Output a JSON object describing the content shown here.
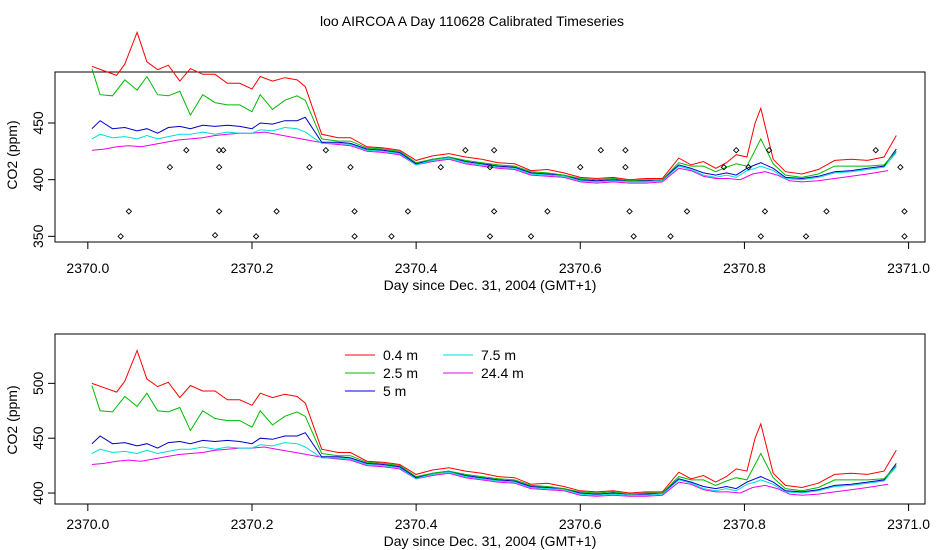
{
  "title": "loo AIRCOA A  Day 110628  Calibrated Timeseries",
  "colors": {
    "s04": "#ff0000",
    "s25": "#00bb00",
    "s5": "#0000cc",
    "s75": "#00dddd",
    "s244": "#ee00ee",
    "axis": "#000000"
  },
  "chart_data": [
    {
      "type": "line",
      "xlabel": "Day since Dec. 31, 2004 (GMT+1)",
      "ylabel": "CO2 (ppm)",
      "xlim": [
        2369.96,
        2371.02
      ],
      "ylim": [
        345,
        495
      ],
      "xticks": [
        "2370.0",
        "2370.2",
        "2370.4",
        "2370.6",
        "2370.8",
        "2371.0"
      ],
      "xtick_values": [
        2370.0,
        2370.2,
        2370.4,
        2370.6,
        2370.8,
        2371.0
      ],
      "yticks": [
        "350",
        "400",
        "450"
      ],
      "ytick_values": [
        350,
        400,
        450
      ],
      "series": [
        {
          "key": "s04",
          "color": "#ff0000",
          "x": [
            2370.005,
            2370.02,
            2370.035,
            2370.045,
            2370.06,
            2370.072,
            2370.085,
            2370.098,
            2370.112,
            2370.125,
            2370.14,
            2370.155,
            2370.17,
            2370.185,
            2370.2,
            2370.21,
            2370.225,
            2370.24,
            2370.255,
            2370.265,
            2370.285,
            2370.305,
            2370.32,
            2370.34,
            2370.36,
            2370.38,
            2370.4,
            2370.42,
            2370.44,
            2370.46,
            2370.48,
            2370.5,
            2370.52,
            2370.54,
            2370.56,
            2370.58,
            2370.6,
            2370.62,
            2370.64,
            2370.66,
            2370.68,
            2370.7,
            2370.72,
            2370.735,
            2370.75,
            2370.765,
            2370.778,
            2370.79,
            2370.803,
            2370.813,
            2370.82,
            2370.835,
            2370.85,
            2370.87,
            2370.89,
            2370.91,
            2370.93,
            2370.95,
            2370.97,
            2370.985
          ],
          "y": [
            500,
            496,
            492,
            502,
            530,
            504,
            497,
            501,
            487,
            498,
            493,
            493,
            485,
            485,
            480,
            491,
            487,
            490,
            488,
            482,
            440,
            437,
            437,
            429,
            428,
            426,
            417,
            421,
            423,
            420,
            418,
            415,
            414,
            408,
            409,
            406,
            402,
            401,
            402,
            400,
            401,
            401,
            419,
            413,
            416,
            410,
            415,
            422,
            420,
            450,
            463,
            418,
            407,
            405,
            409,
            417,
            418,
            417,
            420,
            439
          ]
        },
        {
          "key": "s25",
          "color": "#00bb00",
          "x": [
            2370.005,
            2370.015,
            2370.03,
            2370.045,
            2370.06,
            2370.072,
            2370.085,
            2370.098,
            2370.112,
            2370.125,
            2370.14,
            2370.155,
            2370.17,
            2370.185,
            2370.2,
            2370.21,
            2370.225,
            2370.24,
            2370.255,
            2370.265,
            2370.285,
            2370.305,
            2370.32,
            2370.34,
            2370.36,
            2370.38,
            2370.4,
            2370.42,
            2370.44,
            2370.46,
            2370.48,
            2370.5,
            2370.52,
            2370.54,
            2370.56,
            2370.58,
            2370.6,
            2370.62,
            2370.64,
            2370.66,
            2370.68,
            2370.7,
            2370.72,
            2370.735,
            2370.75,
            2370.765,
            2370.778,
            2370.79,
            2370.803,
            2370.813,
            2370.82,
            2370.835,
            2370.85,
            2370.87,
            2370.89,
            2370.91,
            2370.93,
            2370.95,
            2370.97,
            2370.985
          ],
          "y": [
            498,
            475,
            474,
            488,
            479,
            491,
            475,
            474,
            478,
            457,
            475,
            468,
            466,
            466,
            460,
            475,
            462,
            470,
            474,
            470,
            436,
            434,
            434,
            428,
            427,
            425,
            415,
            418,
            420,
            417,
            415,
            413,
            412,
            407,
            406,
            404,
            401,
            400,
            401,
            399,
            400,
            400,
            415,
            412,
            412,
            407,
            411,
            414,
            412,
            426,
            436,
            414,
            404,
            402,
            405,
            412,
            412,
            412,
            413,
            425
          ]
        },
        {
          "key": "s5",
          "color": "#0000cc",
          "x": [
            2370.005,
            2370.015,
            2370.03,
            2370.045,
            2370.06,
            2370.072,
            2370.085,
            2370.098,
            2370.112,
            2370.125,
            2370.14,
            2370.155,
            2370.17,
            2370.185,
            2370.2,
            2370.21,
            2370.225,
            2370.24,
            2370.255,
            2370.265,
            2370.285,
            2370.305,
            2370.32,
            2370.34,
            2370.36,
            2370.38,
            2370.4,
            2370.42,
            2370.44,
            2370.46,
            2370.48,
            2370.5,
            2370.52,
            2370.54,
            2370.56,
            2370.58,
            2370.6,
            2370.62,
            2370.64,
            2370.66,
            2370.68,
            2370.7,
            2370.72,
            2370.735,
            2370.75,
            2370.765,
            2370.778,
            2370.79,
            2370.803,
            2370.813,
            2370.82,
            2370.835,
            2370.85,
            2370.87,
            2370.89,
            2370.91,
            2370.93,
            2370.95,
            2370.97,
            2370.985
          ],
          "y": [
            445,
            452,
            445,
            446,
            443,
            445,
            441,
            446,
            447,
            445,
            448,
            447,
            448,
            447,
            445,
            450,
            449,
            452,
            452,
            455,
            433,
            433,
            432,
            427,
            426,
            424,
            414,
            418,
            420,
            416,
            414,
            412,
            411,
            406,
            405,
            404,
            400,
            399,
            400,
            399,
            399,
            400,
            413,
            410,
            406,
            404,
            406,
            404,
            410,
            413,
            415,
            410,
            402,
            401,
            403,
            407,
            408,
            410,
            412,
            427
          ]
        },
        {
          "key": "s75",
          "color": "#00dddd",
          "x": [
            2370.005,
            2370.015,
            2370.03,
            2370.045,
            2370.06,
            2370.072,
            2370.085,
            2370.098,
            2370.112,
            2370.125,
            2370.14,
            2370.155,
            2370.17,
            2370.185,
            2370.2,
            2370.21,
            2370.225,
            2370.24,
            2370.255,
            2370.265,
            2370.285,
            2370.305,
            2370.32,
            2370.34,
            2370.36,
            2370.38,
            2370.4,
            2370.42,
            2370.44,
            2370.46,
            2370.48,
            2370.5,
            2370.52,
            2370.54,
            2370.56,
            2370.58,
            2370.6,
            2370.62,
            2370.64,
            2370.66,
            2370.68,
            2370.7,
            2370.72,
            2370.735,
            2370.75,
            2370.765,
            2370.778,
            2370.79,
            2370.803,
            2370.813,
            2370.82,
            2370.835,
            2370.85,
            2370.87,
            2370.89,
            2370.91,
            2370.93,
            2370.95,
            2370.97,
            2370.985
          ],
          "y": [
            436,
            440,
            437,
            438,
            436,
            439,
            436,
            438,
            440,
            440,
            442,
            440,
            442,
            441,
            441,
            444,
            443,
            446,
            445,
            442,
            432,
            432,
            431,
            426,
            425,
            423,
            413,
            417,
            419,
            415,
            413,
            411,
            410,
            405,
            404,
            403,
            399,
            398,
            399,
            398,
            398,
            399,
            412,
            409,
            404,
            402,
            404,
            402,
            408,
            410,
            412,
            408,
            401,
            400,
            402,
            406,
            407,
            409,
            411,
            424
          ]
        },
        {
          "key": "s244",
          "color": "#ee00ee",
          "x": [
            2370.005,
            2370.02,
            2370.035,
            2370.05,
            2370.065,
            2370.08,
            2370.095,
            2370.11,
            2370.125,
            2370.14,
            2370.155,
            2370.17,
            2370.185,
            2370.2,
            2370.215,
            2370.23,
            2370.245,
            2370.26,
            2370.275,
            2370.29,
            2370.305,
            2370.32,
            2370.34,
            2370.36,
            2370.38,
            2370.4,
            2370.42,
            2370.44,
            2370.46,
            2370.48,
            2370.5,
            2370.52,
            2370.54,
            2370.56,
            2370.58,
            2370.6,
            2370.62,
            2370.64,
            2370.66,
            2370.68,
            2370.7,
            2370.72,
            2370.735,
            2370.75,
            2370.765,
            2370.78,
            2370.795,
            2370.81,
            2370.825,
            2370.84,
            2370.855,
            2370.87,
            2370.89,
            2370.91,
            2370.93,
            2370.95,
            2370.975
          ],
          "y": [
            426,
            427,
            429,
            430,
            429,
            431,
            433,
            435,
            436,
            437,
            439,
            440,
            441,
            441,
            442,
            440,
            438,
            436,
            434,
            432,
            431,
            430,
            425,
            424,
            422,
            413,
            416,
            418,
            414,
            412,
            410,
            409,
            404,
            403,
            402,
            398,
            397,
            398,
            397,
            397,
            398,
            410,
            408,
            403,
            401,
            401,
            400,
            405,
            407,
            404,
            399,
            398,
            399,
            401,
            403,
            405,
            408
          ]
        }
      ],
      "markers": {
        "x": [
          2370.04,
          2370.05,
          2370.1,
          2370.12,
          2370.155,
          2370.16,
          2370.16,
          2370.16,
          2370.165,
          2370.205,
          2370.23,
          2370.27,
          2370.29,
          2370.32,
          2370.325,
          2370.325,
          2370.37,
          2370.39,
          2370.43,
          2370.46,
          2370.49,
          2370.495,
          2370.495,
          2370.49,
          2370.54,
          2370.56,
          2370.6,
          2370.625,
          2370.655,
          2370.655,
          2370.66,
          2370.665,
          2370.71,
          2370.73,
          2370.775,
          2370.79,
          2370.805,
          2370.82,
          2370.825,
          2370.83,
          2370.875,
          2370.9,
          2370.96,
          2370.99,
          2370.995,
          2370.995
        ],
        "y": [
          350,
          372,
          411,
          426,
          351,
          372,
          426,
          411,
          426,
          350,
          372,
          411,
          426,
          411,
          372,
          350,
          350,
          372,
          411,
          426,
          411,
          426,
          372,
          350,
          350,
          372,
          411,
          426,
          411,
          426,
          372,
          350,
          350,
          372,
          411,
          426,
          411,
          350,
          372,
          426,
          350,
          372,
          426,
          411,
          372,
          350
        ]
      }
    },
    {
      "type": "line",
      "xlabel": "Day since Dec. 31, 2004 (GMT+1)",
      "ylabel": "CO2 (ppm)",
      "xlim": [
        2369.96,
        2371.02
      ],
      "ylim": [
        390,
        545
      ],
      "xticks": [
        "2370.0",
        "2370.2",
        "2370.4",
        "2370.6",
        "2370.8",
        "2371.0"
      ],
      "xtick_values": [
        2370.0,
        2370.2,
        2370.4,
        2370.6,
        2370.8,
        2371.0
      ],
      "yticks": [
        "400",
        "450",
        "500"
      ],
      "ytick_values": [
        400,
        450,
        500
      ],
      "legend": [
        {
          "key": "s04",
          "label": "0.4 m",
          "color": "#ff0000"
        },
        {
          "key": "s25",
          "label": "2.5 m",
          "color": "#00bb00"
        },
        {
          "key": "s5",
          "label": "5 m",
          "color": "#0000cc"
        },
        {
          "key": "s75",
          "label": "7.5 m",
          "color": "#00dddd"
        },
        {
          "key": "s244",
          "label": "24.4 m",
          "color": "#ee00ee"
        }
      ],
      "series_ref": "same as chart 0 series"
    }
  ]
}
